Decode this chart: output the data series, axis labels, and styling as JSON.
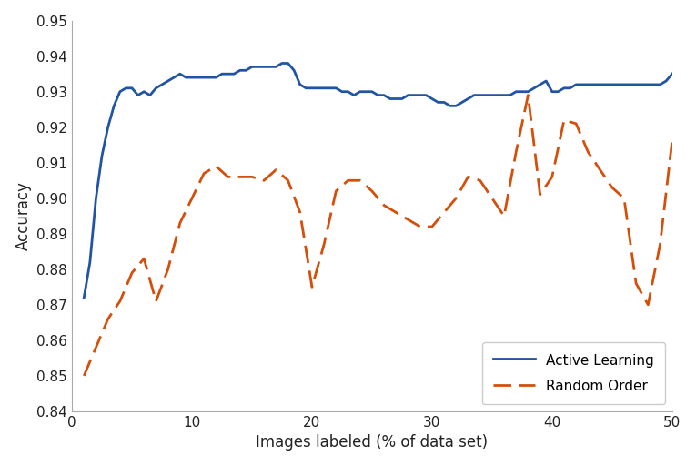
{
  "title": "",
  "xlabel": "Images labeled (% of data set)",
  "ylabel": "Accuracy",
  "xlim": [
    0,
    50
  ],
  "ylim": [
    0.84,
    0.95
  ],
  "yticks": [
    0.84,
    0.85,
    0.86,
    0.87,
    0.88,
    0.89,
    0.9,
    0.91,
    0.92,
    0.93,
    0.94,
    0.95
  ],
  "xticks": [
    0,
    10,
    20,
    30,
    40,
    50
  ],
  "active_learning_x": [
    1,
    1.5,
    2,
    2.5,
    3,
    3.5,
    4,
    4.5,
    5,
    5.5,
    6,
    6.5,
    7,
    7.5,
    8,
    8.5,
    9,
    9.5,
    10,
    10.5,
    11,
    11.5,
    12,
    12.5,
    13,
    13.5,
    14,
    14.5,
    15,
    15.5,
    16,
    16.5,
    17,
    17.5,
    18,
    18.5,
    19,
    19.5,
    20,
    20.5,
    21,
    21.5,
    22,
    22.5,
    23,
    23.5,
    24,
    24.5,
    25,
    25.5,
    26,
    26.5,
    27,
    27.5,
    28,
    28.5,
    29,
    29.5,
    30,
    30.5,
    31,
    31.5,
    32,
    32.5,
    33,
    33.5,
    34,
    34.5,
    35,
    35.5,
    36,
    36.5,
    37,
    37.5,
    38,
    38.5,
    39,
    39.5,
    40,
    40.5,
    41,
    41.5,
    42,
    42.5,
    43,
    43.5,
    44,
    44.5,
    45,
    45.5,
    46,
    46.5,
    47,
    47.5,
    48,
    48.5,
    49,
    49.5,
    50
  ],
  "active_learning_y": [
    0.872,
    0.882,
    0.9,
    0.912,
    0.92,
    0.926,
    0.93,
    0.931,
    0.931,
    0.929,
    0.93,
    0.929,
    0.931,
    0.932,
    0.933,
    0.934,
    0.935,
    0.934,
    0.934,
    0.934,
    0.934,
    0.934,
    0.934,
    0.935,
    0.935,
    0.935,
    0.936,
    0.936,
    0.937,
    0.937,
    0.937,
    0.937,
    0.937,
    0.938,
    0.938,
    0.936,
    0.932,
    0.931,
    0.931,
    0.931,
    0.931,
    0.931,
    0.931,
    0.93,
    0.93,
    0.929,
    0.93,
    0.93,
    0.93,
    0.929,
    0.929,
    0.928,
    0.928,
    0.928,
    0.929,
    0.929,
    0.929,
    0.929,
    0.928,
    0.927,
    0.927,
    0.926,
    0.926,
    0.927,
    0.928,
    0.929,
    0.929,
    0.929,
    0.929,
    0.929,
    0.929,
    0.929,
    0.93,
    0.93,
    0.93,
    0.931,
    0.932,
    0.933,
    0.93,
    0.93,
    0.931,
    0.931,
    0.932,
    0.932,
    0.932,
    0.932,
    0.932,
    0.932,
    0.932,
    0.932,
    0.932,
    0.932,
    0.932,
    0.932,
    0.932,
    0.932,
    0.932,
    0.933,
    0.935
  ],
  "random_order_x": [
    1,
    2,
    3,
    4,
    5,
    6,
    7,
    8,
    9,
    10,
    11,
    12,
    13,
    14,
    15,
    16,
    17,
    18,
    19,
    20,
    21,
    22,
    23,
    24,
    25,
    26,
    27,
    28,
    29,
    30,
    31,
    32,
    33,
    34,
    35,
    36,
    37,
    38,
    39,
    40,
    41,
    42,
    43,
    44,
    45,
    46,
    47,
    48,
    49,
    50
  ],
  "random_order_y": [
    0.85,
    0.858,
    0.866,
    0.871,
    0.879,
    0.883,
    0.871,
    0.88,
    0.893,
    0.9,
    0.907,
    0.909,
    0.906,
    0.906,
    0.906,
    0.905,
    0.908,
    0.905,
    0.896,
    0.875,
    0.887,
    0.902,
    0.905,
    0.905,
    0.902,
    0.898,
    0.896,
    0.894,
    0.892,
    0.892,
    0.896,
    0.9,
    0.906,
    0.905,
    0.9,
    0.895,
    0.913,
    0.929,
    0.901,
    0.906,
    0.922,
    0.921,
    0.913,
    0.908,
    0.903,
    0.9,
    0.876,
    0.87,
    0.887,
    0.916
  ],
  "al_color": "#2155a3",
  "ro_color": "#d4500a",
  "legend_loc": "lower right",
  "al_label": "Active Learning",
  "ro_label": "Random Order",
  "background_color": "#ffffff",
  "figsize": [
    7.65,
    5.12
  ],
  "dpi": 100
}
